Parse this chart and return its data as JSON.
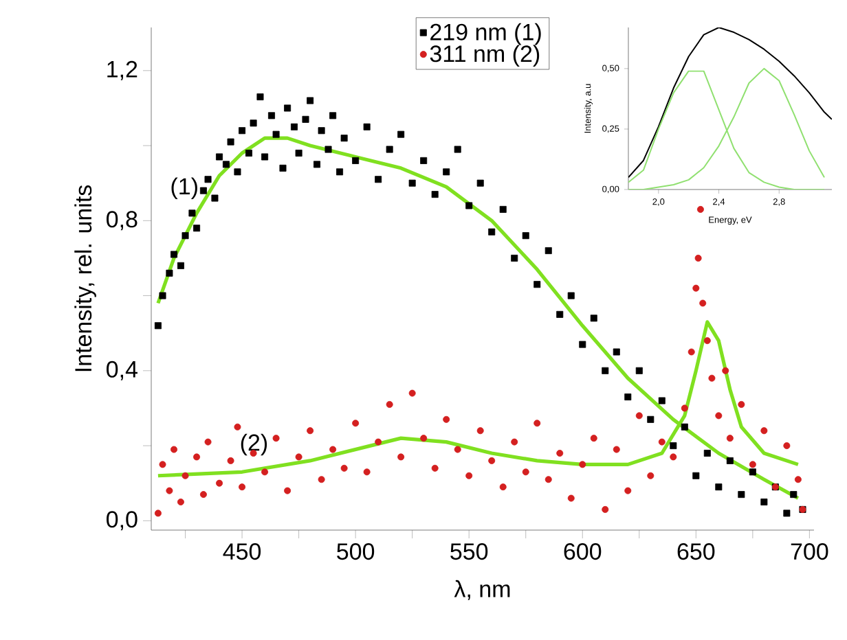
{
  "chart_data": [
    {
      "type": "scatter",
      "xlabel": "λ, nm",
      "ylabel": "Intensity, rel. units",
      "xlim": [
        410,
        702
      ],
      "ylim": [
        -0.025,
        1.315
      ],
      "xticks": [
        {
          "value": 425,
          "label": null
        },
        450,
        {
          "value": 475,
          "label": null
        },
        500,
        {
          "value": 525,
          "label": null
        },
        550,
        {
          "value": 575,
          "label": null
        },
        600,
        {
          "value": 625,
          "label": null
        },
        650,
        {
          "value": 675,
          "label": null
        },
        700
      ],
      "yticks": [
        {
          "value": 0.0,
          "label": "0,0"
        },
        {
          "value": 0.2,
          "label": null
        },
        {
          "value": 0.4,
          "label": "0,4"
        },
        {
          "value": 0.6,
          "label": null
        },
        {
          "value": 0.8,
          "label": "0,8"
        },
        {
          "value": 1.0,
          "label": null
        },
        {
          "value": 1.2,
          "label": "1,2"
        }
      ],
      "legend": "top",
      "grid": false,
      "annotations": [
        "(1)",
        "(2)"
      ],
      "series": [
        {
          "name": "219 nm (1)",
          "type": "scatter",
          "marker": "square",
          "color": "#000000",
          "x": [
            413,
            415,
            418,
            420,
            423,
            425,
            428,
            430,
            433,
            435,
            438,
            440,
            443,
            445,
            448,
            450,
            453,
            455,
            458,
            460,
            463,
            465,
            468,
            470,
            473,
            475,
            478,
            480,
            483,
            485,
            488,
            490,
            493,
            495,
            500,
            505,
            510,
            515,
            520,
            525,
            530,
            535,
            540,
            545,
            550,
            555,
            560,
            565,
            570,
            575,
            580,
            585,
            590,
            595,
            600,
            605,
            610,
            615,
            620,
            625,
            630,
            635,
            640,
            645,
            650,
            655,
            660,
            665,
            670,
            675,
            680,
            685,
            690,
            693,
            697
          ],
          "values": [
            0.52,
            0.6,
            0.66,
            0.71,
            0.68,
            0.76,
            0.82,
            0.78,
            0.88,
            0.91,
            0.86,
            0.97,
            0.95,
            1.01,
            0.93,
            1.04,
            0.98,
            1.06,
            1.13,
            0.97,
            1.08,
            1.03,
            0.94,
            1.1,
            1.05,
            0.98,
            1.07,
            1.12,
            0.95,
            1.04,
            0.99,
            1.08,
            0.93,
            1.02,
            0.96,
            1.05,
            0.91,
            0.99,
            1.03,
            0.9,
            0.96,
            0.87,
            0.93,
            0.99,
            0.84,
            0.9,
            0.77,
            0.83,
            0.7,
            0.76,
            0.63,
            0.72,
            0.55,
            0.6,
            0.47,
            0.54,
            0.4,
            0.45,
            0.33,
            0.4,
            0.27,
            0.32,
            0.2,
            0.25,
            0.12,
            0.18,
            0.09,
            0.16,
            0.07,
            0.13,
            0.05,
            0.09,
            0.02,
            0.07,
            0.03
          ]
        },
        {
          "name": "311 nm (2)",
          "type": "scatter",
          "marker": "circle",
          "color": "#d42020",
          "x": [
            413,
            415,
            418,
            420,
            423,
            425,
            430,
            433,
            435,
            440,
            445,
            448,
            450,
            455,
            460,
            465,
            470,
            475,
            480,
            485,
            490,
            495,
            500,
            505,
            510,
            515,
            520,
            525,
            530,
            535,
            540,
            545,
            550,
            555,
            560,
            565,
            570,
            575,
            580,
            585,
            590,
            595,
            600,
            605,
            610,
            615,
            620,
            625,
            630,
            635,
            640,
            645,
            648,
            650,
            651,
            652,
            653,
            655,
            657,
            660,
            663,
            665,
            670,
            675,
            680,
            685,
            690,
            695,
            697
          ],
          "values": [
            0.02,
            0.15,
            0.08,
            0.19,
            0.05,
            0.12,
            0.17,
            0.07,
            0.21,
            0.1,
            0.16,
            0.25,
            0.09,
            0.18,
            0.13,
            0.22,
            0.08,
            0.17,
            0.24,
            0.11,
            0.19,
            0.14,
            0.26,
            0.13,
            0.21,
            0.31,
            0.17,
            0.34,
            0.22,
            0.14,
            0.27,
            0.19,
            0.12,
            0.24,
            0.16,
            0.09,
            0.21,
            0.13,
            0.26,
            0.11,
            0.18,
            0.06,
            0.15,
            0.22,
            0.03,
            0.19,
            0.08,
            0.28,
            0.12,
            0.21,
            0.17,
            0.3,
            0.45,
            0.62,
            0.7,
            0.83,
            0.58,
            0.48,
            0.38,
            0.28,
            0.4,
            0.22,
            0.31,
            0.15,
            0.24,
            0.09,
            0.2,
            0.11,
            0.03
          ]
        },
        {
          "type": "line",
          "marker": "none",
          "color": "#80e020",
          "x": [
            413,
            420,
            430,
            440,
            450,
            460,
            470,
            480,
            500,
            520,
            540,
            560,
            580,
            600,
            620,
            640,
            660,
            680,
            695
          ],
          "values": [
            0.58,
            0.7,
            0.82,
            0.92,
            0.98,
            1.02,
            1.02,
            1.0,
            0.97,
            0.94,
            0.89,
            0.8,
            0.67,
            0.52,
            0.38,
            0.27,
            0.18,
            0.11,
            0.06
          ]
        },
        {
          "type": "line",
          "marker": "none",
          "color": "#80e020",
          "x": [
            413,
            450,
            480,
            500,
            520,
            540,
            560,
            580,
            600,
            620,
            635,
            645,
            650,
            655,
            660,
            665,
            670,
            680,
            695
          ],
          "values": [
            0.12,
            0.13,
            0.16,
            0.19,
            0.22,
            0.21,
            0.18,
            0.16,
            0.15,
            0.15,
            0.18,
            0.28,
            0.4,
            0.53,
            0.48,
            0.35,
            0.25,
            0.18,
            0.15
          ]
        }
      ]
    },
    {
      "type": "line",
      "xlabel": "Energy, eV",
      "ylabel": "Intensity, a.u",
      "xlim": [
        1.8,
        3.15
      ],
      "ylim": [
        0,
        0.67
      ],
      "xticks": [
        {
          "value": 2.0,
          "label": "2,0"
        },
        {
          "value": 2.4,
          "label": "2,4"
        },
        {
          "value": 2.8,
          "label": "2,8"
        }
      ],
      "yticks": [
        {
          "value": 0,
          "label": "0,00"
        },
        {
          "value": 0.25,
          "label": "0,25"
        },
        {
          "value": 0.5,
          "label": "0,50"
        }
      ],
      "legend": false,
      "grid": false,
      "series": [
        {
          "color": "#000000",
          "x": [
            1.8,
            1.9,
            2.0,
            2.1,
            2.2,
            2.3,
            2.4,
            2.5,
            2.6,
            2.7,
            2.8,
            2.9,
            3.0,
            3.1,
            3.15
          ],
          "values": [
            0.05,
            0.12,
            0.26,
            0.42,
            0.55,
            0.64,
            0.67,
            0.65,
            0.62,
            0.58,
            0.53,
            0.47,
            0.4,
            0.32,
            0.29
          ]
        },
        {
          "color": "#90e070",
          "x": [
            1.8,
            1.9,
            2.0,
            2.1,
            2.2,
            2.3,
            2.4,
            2.5,
            2.6,
            2.7,
            2.8,
            2.9,
            3.0,
            3.1
          ],
          "values": [
            0.03,
            0.08,
            0.25,
            0.4,
            0.49,
            0.49,
            0.33,
            0.17,
            0.07,
            0.03,
            0.01,
            0.0,
            0.0,
            0.0
          ]
        },
        {
          "color": "#90e070",
          "x": [
            1.8,
            1.9,
            2.0,
            2.1,
            2.2,
            2.3,
            2.4,
            2.5,
            2.6,
            2.7,
            2.8,
            2.9,
            3.0,
            3.1
          ],
          "values": [
            0.0,
            0.0,
            0.01,
            0.02,
            0.04,
            0.09,
            0.18,
            0.3,
            0.44,
            0.5,
            0.45,
            0.31,
            0.16,
            0.05
          ]
        }
      ]
    }
  ]
}
